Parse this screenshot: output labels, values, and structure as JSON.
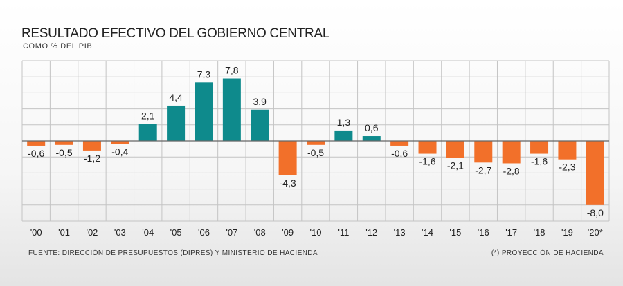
{
  "header": {
    "title": "RESULTADO EFECTIVO DEL GOBIERNO CENTRAL",
    "subtitle": "COMO % DEL PIB"
  },
  "footer": {
    "source": "FUENTE: DIRECCIÓN DE PRESUPUESTOS (DIPRES) Y MINISTERIO DE HACIENDA",
    "note": "(*) PROYECCIÓN DE HACIENDA"
  },
  "colors": {
    "positive": "#0e8a8c",
    "negative": "#f2702a",
    "grid": "#c4c4c4",
    "zero_line": "#666666"
  },
  "chart_data": {
    "type": "bar",
    "title": "RESULTADO EFECTIVO DEL GOBIERNO CENTRAL",
    "subtitle": "COMO % DEL PIB",
    "xlabel": "",
    "ylabel": "",
    "categories": [
      "'00",
      "'01",
      "'02",
      "'03",
      "'04",
      "'05",
      "'06",
      "'07",
      "'08",
      "'09",
      "'10",
      "'11",
      "'12",
      "'13",
      "'14",
      "'15",
      "'16",
      "'17",
      "'18",
      "'19",
      "'20*"
    ],
    "values": [
      -0.6,
      -0.5,
      -1.2,
      -0.4,
      2.1,
      4.4,
      7.3,
      7.8,
      3.9,
      -4.3,
      -0.5,
      1.3,
      0.6,
      -0.6,
      -1.6,
      -2.1,
      -2.7,
      -2.8,
      -1.6,
      -2.3,
      -8.0
    ],
    "value_labels": [
      "-0,6",
      "-0,5",
      "-1,2",
      "-0,4",
      "2,1",
      "4,4",
      "7,3",
      "7,8",
      "3,9",
      "-4,3",
      "-0,5",
      "1,3",
      "0,6",
      "-0,6",
      "-1,6",
      "-2,1",
      "-2,7",
      "-2,8",
      "-1,6",
      "-2,3",
      "-8,0"
    ],
    "ylim": [
      -10,
      10
    ],
    "grid": true,
    "legend": "none"
  }
}
